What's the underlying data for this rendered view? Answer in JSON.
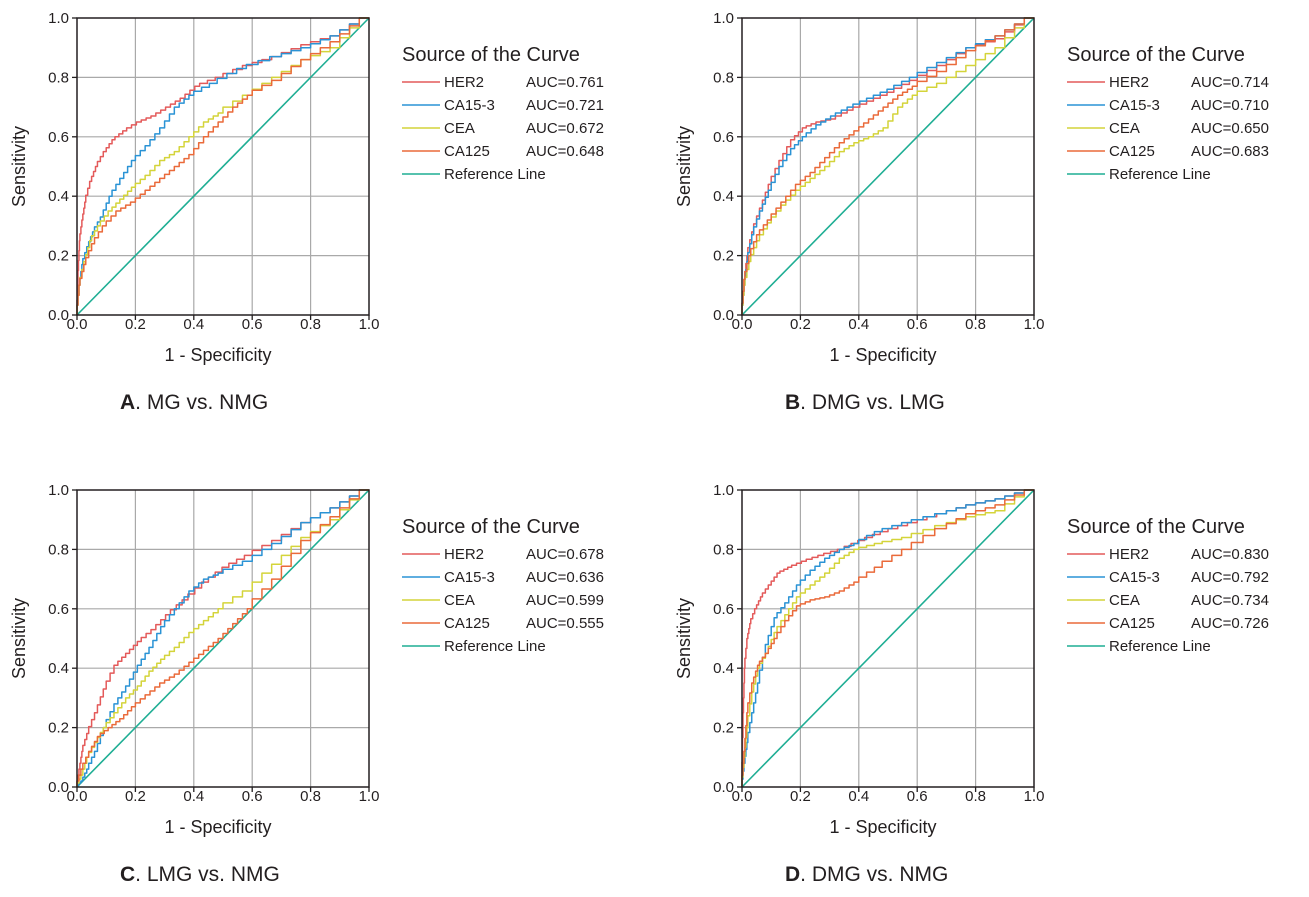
{
  "colors": {
    "HER2": "#e45a5a",
    "CA15-3": "#2a93d5",
    "CEA": "#d4d43a",
    "CA125": "#ea6a3a",
    "Reference Line": "#1fae94",
    "grid": "#a9a9a9",
    "axis": "#231f20"
  },
  "chart_data": [
    {
      "type": "line",
      "panel_letter": "A",
      "panel_title": ". MG vs. NMG",
      "xlabel": "1 - Specificity",
      "ylabel": "Sensitivity",
      "xlim": [
        0,
        1
      ],
      "ylim": [
        0,
        1
      ],
      "x_ticks": [
        "0.0",
        "0.2",
        "0.4",
        "0.6",
        "0.8",
        "1.0"
      ],
      "y_ticks": [
        "0.0",
        "0.2",
        "0.4",
        "0.6",
        "0.8",
        "1.0"
      ],
      "grid": true,
      "legend_title": "Source of the Curve",
      "legend_position": "right",
      "series": [
        {
          "name": "HER2",
          "auc": "AUC=0.761",
          "x": [
            0,
            0.005,
            0.01,
            0.02,
            0.03,
            0.05,
            0.07,
            0.1,
            0.13,
            0.17,
            0.22,
            0.27,
            0.32,
            0.37,
            0.42,
            0.5,
            0.6,
            0.7,
            0.8,
            0.9,
            1
          ],
          "y": [
            0,
            0.15,
            0.25,
            0.32,
            0.38,
            0.45,
            0.5,
            0.55,
            0.59,
            0.62,
            0.65,
            0.67,
            0.7,
            0.73,
            0.77,
            0.8,
            0.84,
            0.87,
            0.91,
            0.94,
            1
          ]
        },
        {
          "name": "CA15-3",
          "auc": "AUC=0.721",
          "x": [
            0,
            0.01,
            0.02,
            0.04,
            0.06,
            0.09,
            0.12,
            0.16,
            0.2,
            0.25,
            0.3,
            0.35,
            0.4,
            0.48,
            0.58,
            0.7,
            0.8,
            0.9,
            1
          ],
          "y": [
            0,
            0.1,
            0.17,
            0.23,
            0.28,
            0.33,
            0.4,
            0.46,
            0.52,
            0.57,
            0.63,
            0.7,
            0.74,
            0.78,
            0.83,
            0.87,
            0.9,
            0.94,
            1
          ]
        },
        {
          "name": "CEA",
          "auc": "AUC=0.672",
          "x": [
            0,
            0.01,
            0.03,
            0.05,
            0.08,
            0.12,
            0.16,
            0.2,
            0.25,
            0.3,
            0.35,
            0.4,
            0.45,
            0.5,
            0.6,
            0.7,
            0.8,
            0.9,
            1
          ],
          "y": [
            0,
            0.1,
            0.18,
            0.25,
            0.3,
            0.35,
            0.39,
            0.43,
            0.47,
            0.52,
            0.55,
            0.6,
            0.65,
            0.68,
            0.74,
            0.8,
            0.86,
            0.9,
            1
          ]
        },
        {
          "name": "CA125",
          "auc": "AUC=0.648",
          "x": [
            0,
            0.01,
            0.03,
            0.06,
            0.1,
            0.15,
            0.2,
            0.25,
            0.3,
            0.35,
            0.4,
            0.45,
            0.5,
            0.55,
            0.6,
            0.7,
            0.8,
            0.9,
            1
          ],
          "y": [
            0,
            0.1,
            0.17,
            0.24,
            0.3,
            0.35,
            0.38,
            0.42,
            0.46,
            0.5,
            0.54,
            0.6,
            0.65,
            0.7,
            0.74,
            0.79,
            0.86,
            0.92,
            1
          ]
        },
        {
          "name": "Reference Line",
          "auc": "",
          "x": [
            0,
            1
          ],
          "y": [
            0,
            1
          ]
        }
      ]
    },
    {
      "type": "line",
      "panel_letter": "B",
      "panel_title": ". DMG vs. LMG",
      "xlabel": "1 - Specificity",
      "ylabel": "Sensitivity",
      "xlim": [
        0,
        1
      ],
      "ylim": [
        0,
        1
      ],
      "x_ticks": [
        "0.0",
        "0.2",
        "0.4",
        "0.6",
        "0.8",
        "1.0"
      ],
      "y_ticks": [
        "0.0",
        "0.2",
        "0.4",
        "0.6",
        "0.8",
        "1.0"
      ],
      "grid": true,
      "legend_title": "Source of the Curve",
      "legend_position": "right",
      "series": [
        {
          "name": "HER2",
          "auc": "AUC=0.714",
          "x": [
            0,
            0.01,
            0.02,
            0.04,
            0.07,
            0.1,
            0.14,
            0.18,
            0.22,
            0.27,
            0.32,
            0.38,
            0.45,
            0.52,
            0.6,
            0.7,
            0.8,
            0.9,
            1
          ],
          "y": [
            0,
            0.12,
            0.2,
            0.28,
            0.36,
            0.44,
            0.52,
            0.59,
            0.63,
            0.65,
            0.66,
            0.69,
            0.72,
            0.75,
            0.79,
            0.84,
            0.9,
            0.93,
            1
          ]
        },
        {
          "name": "CA15-3",
          "auc": "AUC=0.710",
          "x": [
            0,
            0.01,
            0.02,
            0.04,
            0.07,
            0.1,
            0.14,
            0.18,
            0.22,
            0.27,
            0.32,
            0.38,
            0.45,
            0.52,
            0.6,
            0.7,
            0.8,
            0.9,
            1
          ],
          "y": [
            0,
            0.1,
            0.18,
            0.27,
            0.35,
            0.42,
            0.5,
            0.56,
            0.6,
            0.64,
            0.67,
            0.7,
            0.73,
            0.76,
            0.8,
            0.85,
            0.9,
            0.94,
            1
          ]
        },
        {
          "name": "CEA",
          "auc": "AUC=0.650",
          "x": [
            0,
            0.01,
            0.03,
            0.06,
            0.1,
            0.15,
            0.2,
            0.25,
            0.3,
            0.35,
            0.4,
            0.45,
            0.5,
            0.55,
            0.6,
            0.7,
            0.8,
            0.9,
            1
          ],
          "y": [
            0,
            0.1,
            0.18,
            0.25,
            0.31,
            0.37,
            0.42,
            0.46,
            0.5,
            0.55,
            0.58,
            0.6,
            0.63,
            0.7,
            0.74,
            0.78,
            0.84,
            0.9,
            1
          ]
        },
        {
          "name": "CA125",
          "auc": "AUC=0.683",
          "x": [
            0,
            0.01,
            0.03,
            0.06,
            0.1,
            0.15,
            0.2,
            0.25,
            0.3,
            0.35,
            0.4,
            0.45,
            0.5,
            0.55,
            0.6,
            0.7,
            0.8,
            0.9,
            1
          ],
          "y": [
            0,
            0.12,
            0.2,
            0.27,
            0.32,
            0.38,
            0.44,
            0.48,
            0.53,
            0.58,
            0.62,
            0.66,
            0.7,
            0.74,
            0.77,
            0.82,
            0.89,
            0.94,
            1
          ]
        },
        {
          "name": "Reference Line",
          "auc": "",
          "x": [
            0,
            1
          ],
          "y": [
            0,
            1
          ]
        }
      ]
    },
    {
      "type": "line",
      "panel_letter": "C",
      "panel_title": ". LMG vs. NMG",
      "xlabel": "1 - Specificity",
      "ylabel": "Sensitivity",
      "xlim": [
        0,
        1
      ],
      "ylim": [
        0,
        1
      ],
      "x_ticks": [
        "0.0",
        "0.2",
        "0.4",
        "0.6",
        "0.8",
        "1.0"
      ],
      "y_ticks": [
        "0.0",
        "0.2",
        "0.4",
        "0.6",
        "0.8",
        "1.0"
      ],
      "grid": true,
      "legend_title": "Source of the Curve",
      "legend_position": "right",
      "series": [
        {
          "name": "HER2",
          "auc": "AUC=0.678",
          "x": [
            0,
            0.01,
            0.02,
            0.04,
            0.07,
            0.1,
            0.14,
            0.18,
            0.22,
            0.27,
            0.32,
            0.38,
            0.45,
            0.52,
            0.6,
            0.7,
            0.8,
            0.9,
            1
          ],
          "y": [
            0,
            0.06,
            0.12,
            0.18,
            0.25,
            0.33,
            0.41,
            0.45,
            0.49,
            0.53,
            0.58,
            0.63,
            0.69,
            0.74,
            0.78,
            0.83,
            0.89,
            0.94,
            1
          ]
        },
        {
          "name": "CA15-3",
          "auc": "AUC=0.636",
          "x": [
            0,
            0.02,
            0.04,
            0.07,
            0.1,
            0.14,
            0.18,
            0.22,
            0.26,
            0.3,
            0.35,
            0.4,
            0.45,
            0.5,
            0.6,
            0.7,
            0.8,
            0.9,
            1
          ],
          "y": [
            0,
            0.02,
            0.06,
            0.12,
            0.2,
            0.28,
            0.34,
            0.41,
            0.47,
            0.54,
            0.6,
            0.66,
            0.7,
            0.72,
            0.76,
            0.82,
            0.89,
            0.94,
            1
          ]
        },
        {
          "name": "CEA",
          "auc": "AUC=0.599",
          "x": [
            0,
            0.02,
            0.04,
            0.07,
            0.1,
            0.14,
            0.18,
            0.22,
            0.26,
            0.3,
            0.35,
            0.4,
            0.45,
            0.5,
            0.6,
            0.7,
            0.8,
            0.9,
            1
          ],
          "y": [
            0,
            0.04,
            0.1,
            0.15,
            0.2,
            0.25,
            0.3,
            0.34,
            0.39,
            0.43,
            0.47,
            0.52,
            0.56,
            0.6,
            0.66,
            0.75,
            0.84,
            0.9,
            1
          ]
        },
        {
          "name": "CA125",
          "auc": "AUC=0.555",
          "x": [
            0,
            0.02,
            0.05,
            0.08,
            0.12,
            0.16,
            0.2,
            0.25,
            0.3,
            0.35,
            0.4,
            0.45,
            0.5,
            0.55,
            0.6,
            0.7,
            0.8,
            0.9,
            1
          ],
          "y": [
            0,
            0.06,
            0.12,
            0.17,
            0.2,
            0.23,
            0.27,
            0.31,
            0.35,
            0.38,
            0.42,
            0.46,
            0.5,
            0.55,
            0.6,
            0.7,
            0.83,
            0.91,
            1
          ]
        },
        {
          "name": "Reference Line",
          "auc": "",
          "x": [
            0,
            1
          ],
          "y": [
            0,
            1
          ]
        }
      ]
    },
    {
      "type": "line",
      "panel_letter": "D",
      "panel_title": ". DMG vs. NMG",
      "xlabel": "1 - Specificity",
      "ylabel": "Sensitivity",
      "xlim": [
        0,
        1
      ],
      "ylim": [
        0,
        1
      ],
      "x_ticks": [
        "0.0",
        "0.2",
        "0.4",
        "0.6",
        "0.8",
        "1.0"
      ],
      "y_ticks": [
        "0.0",
        "0.2",
        "0.4",
        "0.6",
        "0.8",
        "1.0"
      ],
      "grid": true,
      "legend_title": "Source of the Curve",
      "legend_position": "right",
      "series": [
        {
          "name": "HER2",
          "auc": "AUC=0.830",
          "x": [
            0,
            0.005,
            0.01,
            0.02,
            0.03,
            0.05,
            0.07,
            0.1,
            0.13,
            0.17,
            0.22,
            0.28,
            0.35,
            0.42,
            0.5,
            0.6,
            0.7,
            0.8,
            0.9,
            1
          ],
          "y": [
            0,
            0.25,
            0.4,
            0.5,
            0.55,
            0.6,
            0.64,
            0.68,
            0.72,
            0.74,
            0.76,
            0.78,
            0.8,
            0.83,
            0.86,
            0.89,
            0.92,
            0.95,
            0.97,
            1
          ]
        },
        {
          "name": "CA15-3",
          "auc": "AUC=0.792",
          "x": [
            0,
            0.01,
            0.02,
            0.04,
            0.06,
            0.09,
            0.12,
            0.16,
            0.2,
            0.25,
            0.3,
            0.35,
            0.4,
            0.48,
            0.58,
            0.7,
            0.8,
            0.9,
            1
          ],
          "y": [
            0,
            0.08,
            0.15,
            0.25,
            0.35,
            0.48,
            0.57,
            0.62,
            0.68,
            0.73,
            0.77,
            0.8,
            0.82,
            0.86,
            0.89,
            0.92,
            0.95,
            0.97,
            1
          ]
        },
        {
          "name": "CEA",
          "auc": "AUC=0.734",
          "x": [
            0,
            0.01,
            0.02,
            0.04,
            0.06,
            0.09,
            0.12,
            0.16,
            0.2,
            0.25,
            0.3,
            0.35,
            0.4,
            0.48,
            0.58,
            0.7,
            0.8,
            0.9,
            1
          ],
          "y": [
            0,
            0.1,
            0.2,
            0.32,
            0.4,
            0.45,
            0.52,
            0.58,
            0.64,
            0.68,
            0.72,
            0.77,
            0.8,
            0.82,
            0.84,
            0.88,
            0.91,
            0.93,
            1
          ]
        },
        {
          "name": "CA125",
          "auc": "AUC=0.726",
          "x": [
            0,
            0.01,
            0.02,
            0.04,
            0.06,
            0.09,
            0.12,
            0.16,
            0.2,
            0.25,
            0.3,
            0.35,
            0.4,
            0.48,
            0.58,
            0.7,
            0.8,
            0.9,
            1
          ],
          "y": [
            0,
            0.12,
            0.25,
            0.35,
            0.41,
            0.45,
            0.5,
            0.56,
            0.61,
            0.63,
            0.64,
            0.66,
            0.69,
            0.74,
            0.8,
            0.87,
            0.92,
            0.95,
            1
          ]
        },
        {
          "name": "Reference Line",
          "auc": "",
          "x": [
            0,
            1
          ],
          "y": [
            0,
            1
          ]
        }
      ]
    }
  ]
}
